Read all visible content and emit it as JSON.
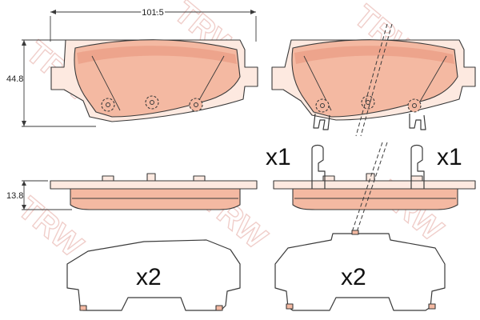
{
  "dimensions": {
    "width_label": "101.5",
    "height_label": "44.8",
    "thickness_label": "13.8"
  },
  "quantities": {
    "sensor_left": "x1",
    "sensor_right": "x1",
    "shim_left": "x2",
    "shim_right": "x2"
  },
  "watermark": {
    "text": "TRW"
  },
  "colors": {
    "friction_fill": "#f4b9a2",
    "friction_shade": "#e8937a",
    "backing_fill": "#fde9e0",
    "line": "#3a3a3a",
    "watermark": "#e4a7a0"
  }
}
